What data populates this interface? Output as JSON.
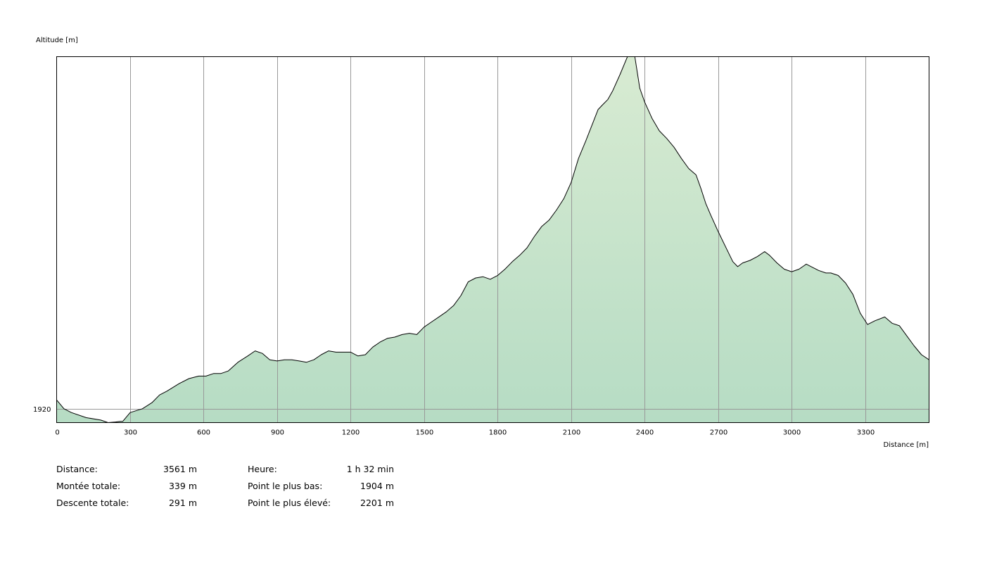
{
  "chart_data": {
    "type": "area",
    "ylabel": "Altitude [m]",
    "xlabel": "Distance [m]",
    "xlim": [
      0,
      3561
    ],
    "ylim": [
      1909,
      2200
    ],
    "xticks": [
      0,
      300,
      600,
      900,
      1200,
      1500,
      1800,
      2100,
      2400,
      2700,
      3000,
      3300
    ],
    "yticks": [
      1920
    ],
    "grid": true,
    "colors": {
      "fill_top": "#d8ebd2",
      "fill_bottom": "#b6dcc4",
      "line": "#000000",
      "grid": "#999999"
    },
    "x": [
      0,
      30,
      60,
      120,
      180,
      210,
      240,
      260,
      270,
      300,
      350,
      390,
      420,
      450,
      500,
      540,
      580,
      610,
      640,
      670,
      700,
      740,
      780,
      810,
      840,
      870,
      900,
      930,
      960,
      990,
      1020,
      1050,
      1080,
      1110,
      1140,
      1170,
      1200,
      1230,
      1260,
      1290,
      1320,
      1350,
      1380,
      1410,
      1440,
      1470,
      1500,
      1530,
      1560,
      1590,
      1620,
      1650,
      1680,
      1710,
      1740,
      1770,
      1800,
      1830,
      1860,
      1890,
      1920,
      1950,
      1980,
      2010,
      2040,
      2070,
      2100,
      2130,
      2160,
      2190,
      2210,
      2230,
      2250,
      2270,
      2300,
      2330,
      2350,
      2360,
      2380,
      2400,
      2430,
      2460,
      2490,
      2520,
      2550,
      2580,
      2610,
      2630,
      2650,
      2670,
      2700,
      2730,
      2760,
      2780,
      2800,
      2830,
      2860,
      2890,
      2910,
      2940,
      2970,
      3000,
      3030,
      3060,
      3080,
      3110,
      3140,
      3160,
      3190,
      3220,
      3250,
      3280,
      3310,
      3340,
      3380,
      3410,
      3440,
      3470,
      3500,
      3530,
      3561
    ],
    "y": [
      1927,
      1920,
      1917,
      1913,
      1911,
      1909,
      1909.5,
      1910,
      1910,
      1917,
      1920,
      1925,
      1931,
      1934,
      1940,
      1944,
      1946,
      1946,
      1948,
      1948,
      1950,
      1957,
      1962,
      1966,
      1964,
      1959,
      1958,
      1959,
      1959,
      1958,
      1957,
      1959,
      1963,
      1966,
      1965,
      1965,
      1965,
      1962,
      1963,
      1969,
      1973,
      1976,
      1977,
      1979,
      1980,
      1979,
      1985,
      1989,
      1993,
      1997,
      2002,
      2010,
      2021,
      2024,
      2025,
      2023,
      2026,
      2031,
      2037,
      2042,
      2048,
      2057,
      2065,
      2070,
      2078,
      2087,
      2100,
      2119,
      2133,
      2148,
      2158,
      2162,
      2166,
      2173,
      2186,
      2200,
      2200,
      2200,
      2175,
      2164,
      2151,
      2141,
      2135,
      2128,
      2119,
      2111,
      2106,
      2095,
      2083,
      2074,
      2061,
      2049,
      2037,
      2033,
      2036,
      2038,
      2041,
      2045,
      2042,
      2036,
      2031,
      2029,
      2031,
      2035,
      2033,
      2030,
      2028,
      2028,
      2026,
      2020,
      2011,
      1996,
      1987,
      1990,
      1993,
      1988,
      1986,
      1978,
      1970,
      1963,
      1959
    ]
  },
  "stats": {
    "left": [
      {
        "label": "Distance:",
        "value": "3561 m"
      },
      {
        "label": "Montée totale:",
        "value": "339 m"
      },
      {
        "label": "Descente totale:",
        "value": "291 m"
      }
    ],
    "right": [
      {
        "label": "Heure:",
        "value": "1 h 32 min"
      },
      {
        "label": "Point le plus bas:",
        "value": "1904 m"
      },
      {
        "label": "Point le plus élevé:",
        "value": "2201 m"
      }
    ]
  }
}
